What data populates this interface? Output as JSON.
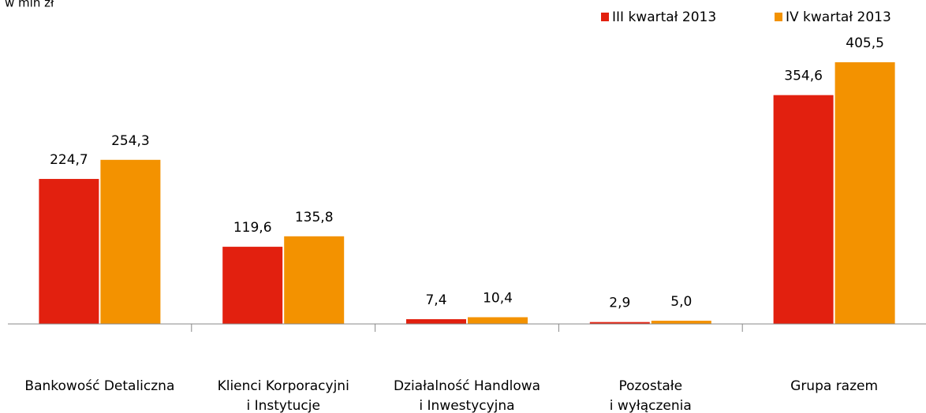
{
  "chart_data": {
    "type": "bar",
    "subtitle": "w mln zł",
    "categories": [
      [
        "Bankowość Detaliczna"
      ],
      [
        "Klienci Korporacyjni",
        "i Instytucje"
      ],
      [
        "Działalność Handlowa",
        "i Inwestycyjna"
      ],
      [
        "Pozostałe",
        "i wyłączenia"
      ],
      [
        "Grupa razem"
      ]
    ],
    "series": [
      {
        "name": "III kwartał 2013",
        "color": "#e2200f",
        "values": [
          224.7,
          119.6,
          7.4,
          2.9,
          354.6
        ],
        "value_labels": [
          "224,7",
          "119,6",
          "7,4",
          "2,9",
          "354,6"
        ]
      },
      {
        "name": "IV kwartał 2013",
        "color": "#f39200",
        "values": [
          254.3,
          135.8,
          10.4,
          5.0,
          405.5
        ],
        "value_labels": [
          "254,3",
          "135,8",
          "10,4",
          "5,0",
          "405,5"
        ]
      }
    ],
    "legend": "top-right"
  }
}
